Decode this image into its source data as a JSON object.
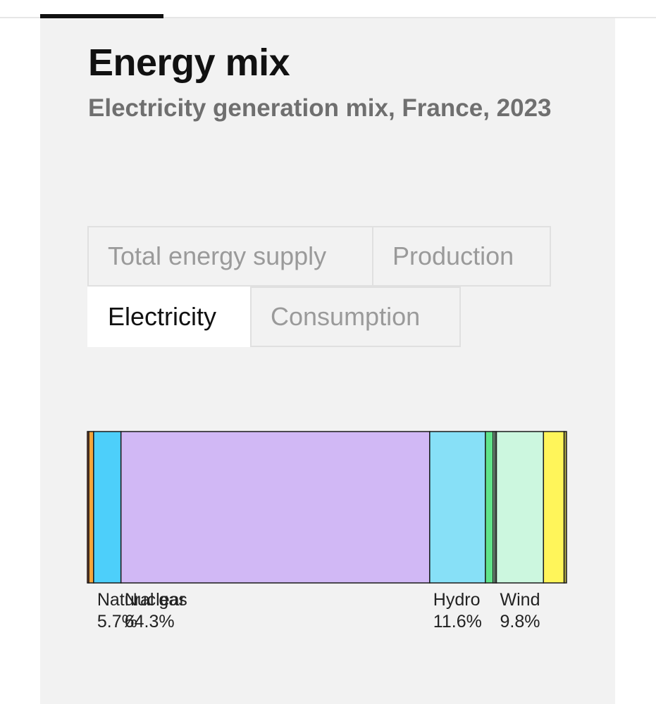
{
  "header": {
    "title": "Energy mix",
    "subtitle": "Electricity generation mix, France, 2023"
  },
  "tabs": [
    {
      "label": "Total energy supply",
      "active": false
    },
    {
      "label": "Production",
      "active": false
    },
    {
      "label": "Electricity",
      "active": true
    },
    {
      "label": "Consumption",
      "active": false
    }
  ],
  "colors": {
    "accent": "#111111",
    "card_background": "#f2f2f2"
  },
  "chart_data": {
    "type": "bar",
    "stacked": true,
    "orientation": "horizontal",
    "unit": "%",
    "series": [
      {
        "name": "",
        "value": 0.3,
        "color": "#f26b3a",
        "label": ""
      },
      {
        "name": "",
        "value": 1.0,
        "color": "#f5a53b",
        "label": ""
      },
      {
        "name": "Natural gas",
        "value": 5.7,
        "color": "#4dcffa",
        "label": "5.7%"
      },
      {
        "name": "Nuclear",
        "value": 64.3,
        "color": "#d1b8f5",
        "label": "64.3%"
      },
      {
        "name": "Hydro",
        "value": 11.6,
        "color": "#87e0f7",
        "label": "11.6%"
      },
      {
        "name": "",
        "value": 1.6,
        "color": "#60e38a",
        "label": ""
      },
      {
        "name": "",
        "value": 0.4,
        "color": "#b9f1cf",
        "label": ""
      },
      {
        "name": "",
        "value": 0.3,
        "color": "#c9f5dc",
        "label": ""
      },
      {
        "name": "Wind",
        "value": 9.8,
        "color": "#ccf7df",
        "label": "9.8%"
      },
      {
        "name": "",
        "value": 4.3,
        "color": "#fff55a",
        "label": ""
      },
      {
        "name": "",
        "value": 0.5,
        "color": "#b7b04a",
        "label": ""
      }
    ]
  }
}
